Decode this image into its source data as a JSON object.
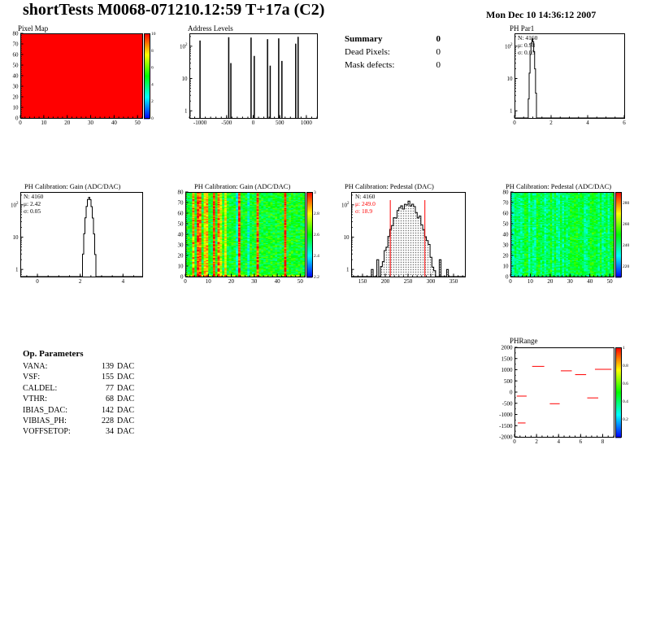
{
  "header": {
    "title": "shortTests M0068-071210.12:59 T+17a (C2)",
    "date": "Mon Dec 10 14:36:12 2007"
  },
  "summary": {
    "title": "Summary",
    "value": "0",
    "rows": [
      {
        "label": "Dead Pixels:",
        "value": "0"
      },
      {
        "label": "Mask defects:",
        "value": "0"
      }
    ]
  },
  "op_parameters": {
    "title": "Op. Parameters",
    "unit": "DAC",
    "rows": [
      {
        "label": "VANA:",
        "value": "139"
      },
      {
        "label": "VSF:",
        "value": "155"
      },
      {
        "label": "CALDEL:",
        "value": "77"
      },
      {
        "label": "VTHR:",
        "value": "68"
      },
      {
        "label": "IBIAS_DAC:",
        "value": "142"
      },
      {
        "label": "VIBIAS_PH:",
        "value": "228"
      },
      {
        "label": "VOFFSETOP:",
        "value": "34"
      }
    ]
  },
  "colors": {
    "accent_red": "#ff0000",
    "frame": "#000000",
    "palette": [
      "#0000ff",
      "#00ffff",
      "#00ff00",
      "#ffff00",
      "#ff0000"
    ]
  },
  "chart_data": [
    {
      "id": "pixel-map",
      "type": "heatmap",
      "render": "heatmap",
      "title": "Pixel Map",
      "xlim": [
        0,
        52
      ],
      "ylim": [
        0,
        80
      ],
      "x_ticks": [
        0,
        10,
        20,
        30,
        40,
        50
      ],
      "y_ticks": [
        0,
        10,
        20,
        30,
        40,
        50,
        60,
        70,
        80
      ],
      "x_minor": 2,
      "y_minor": 2,
      "zlim": [
        0,
        10
      ],
      "z_uniform": 10,
      "colorbar_ticks": [
        10,
        8,
        6,
        4,
        2,
        0
      ]
    },
    {
      "id": "address-levels",
      "type": "bar",
      "render": "spikes",
      "title": "Address Levels",
      "xlim": [
        -1200,
        1200
      ],
      "x_ticks": [
        -1000,
        -500,
        0,
        500,
        1000
      ],
      "x_minor": 100,
      "ylog": {
        "min": 0.6,
        "max": 250
      },
      "y_ticks": [
        {
          "text": "1",
          "value": 1
        },
        {
          "text": "10",
          "value": 10
        },
        {
          "text": "10^2",
          "value": 100
        }
      ],
      "spikes": [
        {
          "x": -1000,
          "count": 150
        },
        {
          "x": -460,
          "count": 190
        },
        {
          "x": -420,
          "count": 30
        },
        {
          "x": -40,
          "count": 185
        },
        {
          "x": 20,
          "count": 50
        },
        {
          "x": 270,
          "count": 165
        },
        {
          "x": 320,
          "count": 25
        },
        {
          "x": 480,
          "count": 175
        },
        {
          "x": 540,
          "count": 35
        },
        {
          "x": 800,
          "count": 120
        },
        {
          "x": 845,
          "count": 195
        }
      ]
    },
    {
      "id": "ph-par1",
      "type": "bar",
      "render": "hist",
      "title": "PH Par1",
      "stats": {
        "n": "N: 4160",
        "mu": "μ: 0.98",
        "sigma": "σ: 0.05"
      },
      "entries": 4160,
      "mean": 0.98,
      "sigma": 0.05,
      "draw": {
        "peak": 170,
        "sigma": 0.07,
        "nbins": 120,
        "seed": 3
      },
      "xlim": [
        0,
        6
      ],
      "x_ticks": [
        0,
        2,
        4,
        6
      ],
      "x_minor": 0.5,
      "ylog": {
        "min": 0.6,
        "max": 250
      },
      "y_ticks": [
        {
          "text": "1",
          "value": 1
        },
        {
          "text": "10",
          "value": 10
        },
        {
          "text": "10^2",
          "value": 100
        }
      ]
    },
    {
      "id": "gain-hist",
      "type": "bar",
      "render": "hist",
      "title": "PH Calibration: Gain (ADC/DAC)",
      "stats": {
        "n": "N: 4160",
        "mu": "μ: 2.42",
        "sigma": "σ: 0.05"
      },
      "entries": 4160,
      "mean": 2.42,
      "sigma": 0.05,
      "draw": {
        "peak": 170,
        "sigma": 0.1,
        "nbins": 100,
        "seed": 9
      },
      "xlim": [
        -0.8,
        4.9
      ],
      "x_ticks": [
        0,
        2,
        4
      ],
      "x_minor": 0.5,
      "ylog": {
        "min": 0.6,
        "max": 250
      },
      "y_ticks": [
        {
          "text": "1",
          "value": 1
        },
        {
          "text": "10",
          "value": 10
        },
        {
          "text": "10^2",
          "value": 100
        }
      ]
    },
    {
      "id": "gain-map",
      "type": "heatmap",
      "render": "heatmap",
      "title": "PH Calibration: Gain (ADC/DAC)",
      "xlim": [
        0,
        52
      ],
      "ylim": [
        0,
        80
      ],
      "x_ticks": [
        0,
        10,
        20,
        30,
        40,
        50
      ],
      "y_ticks": [
        0,
        10,
        20,
        30,
        40,
        50,
        60,
        70,
        80
      ],
      "x_minor": 2,
      "y_minor": 2,
      "zlim": [
        2.2,
        3.0
      ],
      "noise": {
        "seed": 11,
        "base": 2.58,
        "cell": 0.2,
        "hot_col_region": [
          0,
          20
        ],
        "hot_col_prob": 0.5,
        "sparse_hot_prob": 0.08,
        "hot_boost": 0.28
      },
      "colorbar_ticks": [
        3,
        2.8,
        2.6,
        2.4,
        2.2
      ]
    },
    {
      "id": "pedestal-hist",
      "type": "bar",
      "render": "hist",
      "title": "PH Calibration: Pedestal (DAC)",
      "stats": {
        "n": "N: 4160",
        "mu": "μ: 249.0",
        "sigma": "σ: 18.9"
      },
      "entries": 4160,
      "mean": 249.0,
      "sigma": 18.9,
      "draw": {
        "peak": 110,
        "sigma": 18.9,
        "nbins": 62,
        "jitter": 0.5,
        "seed": 5,
        "hatch": true
      },
      "outliers": [
        {
          "x": 172,
          "count": 1
        },
        {
          "x": 185,
          "count": 2
        },
        {
          "x": 322,
          "count": 2
        },
        {
          "x": 338,
          "count": 1
        }
      ],
      "cut_lines": {
        "values": [
          211,
          287
        ],
        "top": 140,
        "color": "#ff0000"
      },
      "xlim": [
        125,
        375
      ],
      "x_ticks": [
        150,
        200,
        250,
        300,
        350
      ],
      "x_minor": 10,
      "ylog": {
        "min": 0.6,
        "max": 250
      },
      "y_ticks": [
        {
          "text": "1",
          "value": 1
        },
        {
          "text": "10",
          "value": 10
        },
        {
          "text": "10^2",
          "value": 100
        }
      ]
    },
    {
      "id": "pedestal-map",
      "type": "heatmap",
      "render": "heatmap",
      "title": "PH Calibration: Pedestal (ADC/DAC)",
      "xlim": [
        0,
        52
      ],
      "ylim": [
        0,
        80
      ],
      "x_ticks": [
        0,
        10,
        20,
        30,
        40,
        50
      ],
      "y_ticks": [
        0,
        10,
        20,
        30,
        40,
        50,
        60,
        70,
        80
      ],
      "x_minor": 2,
      "y_minor": 2,
      "zlim": [
        210,
        290
      ],
      "noise": {
        "seed": 23,
        "base": 243,
        "col": 14,
        "cell": 16
      },
      "colorbar_ticks": [
        280,
        260,
        240,
        220
      ]
    },
    {
      "id": "ph-range",
      "type": "scatter",
      "render": "segments",
      "title": "PHRange",
      "xlim": [
        0,
        9
      ],
      "x_ticks": [
        0,
        2,
        4,
        6,
        8
      ],
      "x_minor": 0.5,
      "ylim": [
        -2000,
        2000
      ],
      "y_ticks": [
        2000,
        1500,
        1000,
        500,
        0,
        -500,
        -1000,
        -1500,
        -2000
      ],
      "y_minor": 250,
      "zlim": [
        0,
        1
      ],
      "colorbar_ticks": [
        1,
        0.8,
        0.6,
        0.4,
        0.2
      ],
      "color": "#ff0000",
      "segments": [
        {
          "x1": 1.6,
          "x2": 2.7,
          "y": 1150
        },
        {
          "x1": 4.2,
          "x2": 5.2,
          "y": 950
        },
        {
          "x1": 5.5,
          "x2": 6.5,
          "y": 780
        },
        {
          "x1": 7.3,
          "x2": 8.8,
          "y": 1020
        },
        {
          "x1": 0.2,
          "x2": 1.1,
          "y": -180
        },
        {
          "x1": 3.2,
          "x2": 4.1,
          "y": -520
        },
        {
          "x1": 0.3,
          "x2": 1.0,
          "y": -1380
        },
        {
          "x1": 6.6,
          "x2": 7.6,
          "y": -260
        }
      ]
    }
  ]
}
